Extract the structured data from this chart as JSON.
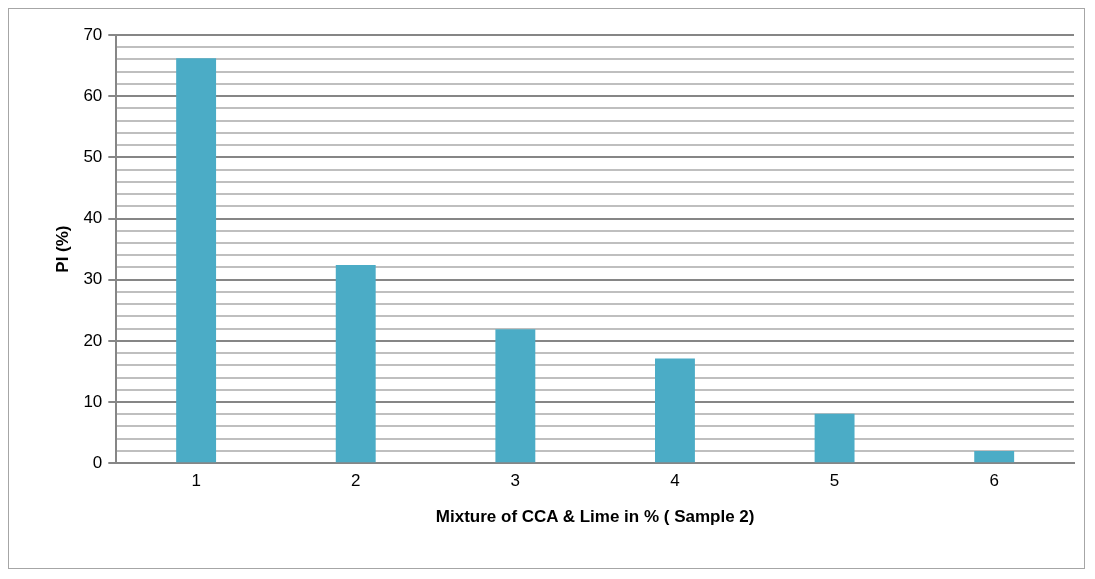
{
  "chart_data": {
    "type": "bar",
    "xlabel": "Mixture of CCA & Lime in % ( Sample 2)",
    "ylabel": "PI (%)",
    "categories": [
      "1",
      "2",
      "3",
      "4",
      "5",
      "6"
    ],
    "values": [
      66.2,
      32.4,
      21.9,
      17.1,
      8.1,
      2.0
    ],
    "color": "#4bacc6",
    "ylim": [
      0,
      70
    ],
    "yticks": [
      0,
      {
        "value": 2,
        "label": null
      },
      {
        "value": 4,
        "label": null
      },
      {
        "value": 6,
        "label": null
      },
      {
        "value": 8,
        "label": null
      },
      10,
      {
        "value": 12,
        "label": null
      },
      {
        "value": 14,
        "label": null
      },
      {
        "value": 16,
        "label": null
      },
      {
        "value": 18,
        "label": null
      },
      20,
      {
        "value": 22,
        "label": null
      },
      {
        "value": 24,
        "label": null
      },
      {
        "value": 26,
        "label": null
      },
      {
        "value": 28,
        "label": null
      },
      30,
      {
        "value": 32,
        "label": null
      },
      {
        "value": 34,
        "label": null
      },
      {
        "value": 36,
        "label": null
      },
      {
        "value": 38,
        "label": null
      },
      40,
      {
        "value": 42,
        "label": null
      },
      {
        "value": 44,
        "label": null
      },
      {
        "value": 46,
        "label": null
      },
      {
        "value": 48,
        "label": null
      },
      50,
      {
        "value": 52,
        "label": null
      },
      {
        "value": 54,
        "label": null
      },
      {
        "value": 56,
        "label": null
      },
      {
        "value": 58,
        "label": null
      },
      60,
      {
        "value": 62,
        "label": null
      },
      {
        "value": 64,
        "label": null
      },
      {
        "value": 66,
        "label": null
      },
      {
        "value": 68,
        "label": null
      },
      70
    ],
    "grid": "y"
  }
}
